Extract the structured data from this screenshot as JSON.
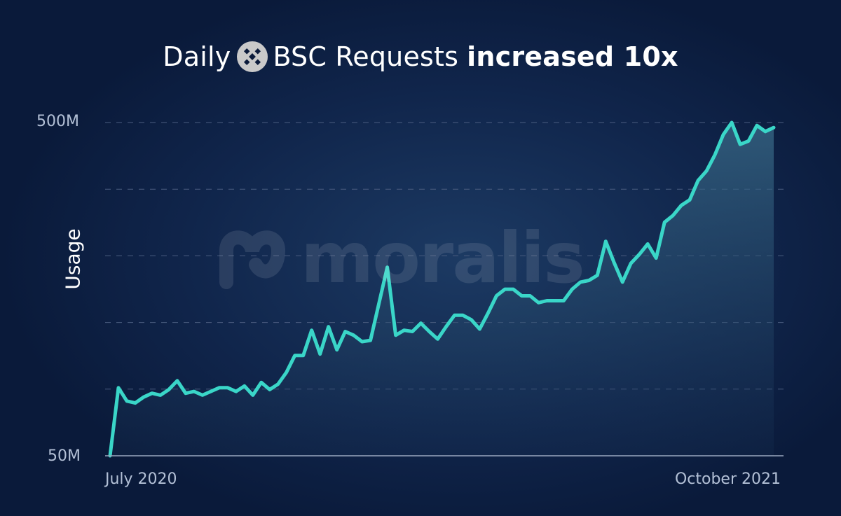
{
  "title": {
    "prefix": "Daily",
    "main": "BSC Requests",
    "bold": "increased 10x",
    "logo_icon": "binance-logo-icon"
  },
  "watermark": {
    "text": "moralis",
    "icon": "moralis-logo-icon"
  },
  "colors": {
    "background": "#0a1a3a",
    "line": "#3ad6c8",
    "grid": "#4b5d80",
    "tick_text": "#b3c0d6",
    "title_text": "#ffffff"
  },
  "chart_data": {
    "type": "area",
    "title": "Daily BSC Requests increased 10x",
    "xlabel": "",
    "ylabel": "Usage",
    "yscale": "log",
    "ylim": [
      50,
      500
    ],
    "ytick_labels": [
      "500M",
      "50M"
    ],
    "x_range": [
      "July 2020",
      "October 2021"
    ],
    "xtick_labels": [
      "July 2020",
      "October 2021"
    ],
    "grid": "horizontal dashed",
    "legend": "none",
    "x": [
      0,
      1,
      2,
      3,
      4,
      5,
      6,
      7,
      8,
      9,
      10,
      11,
      12,
      13,
      14,
      15,
      16,
      17,
      18,
      19,
      20,
      21,
      22,
      23,
      24,
      25,
      26,
      27,
      28,
      29,
      30,
      31,
      32,
      33,
      34,
      35,
      36,
      37,
      38,
      39,
      40,
      41,
      42,
      43,
      44,
      45,
      46,
      47,
      48,
      49,
      50,
      51,
      52,
      53,
      54,
      55,
      56,
      57,
      58,
      59,
      60,
      61,
      62,
      63,
      64,
      65,
      66,
      67,
      68,
      69,
      70,
      71,
      72,
      73,
      74,
      75,
      76,
      77,
      78,
      79
    ],
    "series": [
      {
        "values": [
          50,
          80,
          73,
          72,
          75,
          77,
          76,
          79,
          84,
          77,
          78,
          76,
          78,
          80,
          80,
          78,
          81,
          76,
          83,
          79,
          82,
          89,
          100,
          100,
          119,
          101,
          122,
          104,
          118,
          115,
          110,
          111,
          143,
          184,
          115,
          119,
          118,
          125,
          118,
          112,
          122,
          132,
          132,
          128,
          120,
          134,
          151,
          158,
          158,
          151,
          151,
          144,
          146,
          146,
          146,
          158,
          166,
          168,
          174,
          220,
          190,
          166,
          189,
          201,
          216,
          196,
          251,
          263,
          282,
          293,
          335,
          358,
          400,
          460,
          500,
          430,
          440,
          490,
          470,
          483
        ]
      }
    ]
  }
}
